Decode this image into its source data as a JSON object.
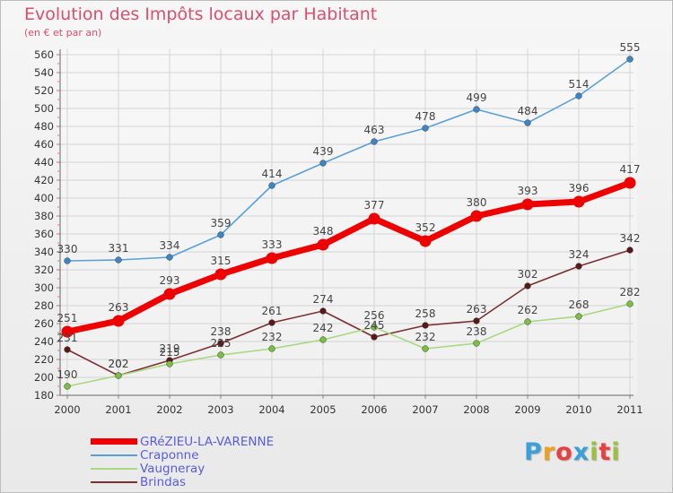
{
  "header": {
    "title": "Evolution des Impôts locaux par Habitant",
    "subtitle": "(en € et par an)"
  },
  "logo": {
    "text": "Proxiti",
    "colors": [
      "#3aa0d8",
      "#f0a020",
      "#e84040",
      "#3aa0d8",
      "#9ac040",
      "#e84040",
      "#9ac040"
    ]
  },
  "chart_data": {
    "type": "line",
    "x": [
      "2000",
      "2001",
      "2002",
      "2003",
      "2004",
      "2005",
      "2006",
      "2007",
      "2008",
      "2009",
      "2010",
      "2011"
    ],
    "ylim": [
      180,
      560
    ],
    "yticks": [
      180,
      200,
      220,
      240,
      260,
      280,
      300,
      320,
      340,
      360,
      380,
      400,
      420,
      440,
      460,
      480,
      500,
      520,
      540,
      560
    ],
    "grid": true,
    "legend_position": "bottom-left",
    "series": [
      {
        "name": "Craponne",
        "color": "#5aa0d8",
        "marker_color": "#3a86c8",
        "values": [
          330,
          331,
          334,
          359,
          414,
          439,
          463,
          478,
          499,
          484,
          514,
          555
        ],
        "labels": [
          "330",
          "331",
          "334",
          "359",
          "414",
          "439",
          "463",
          "478",
          "499",
          "484",
          "514",
          "555"
        ]
      },
      {
        "name": "Brindas",
        "color": "#7a3030",
        "marker_color": "#5a1818",
        "values": [
          231,
          202,
          219,
          238,
          261,
          274,
          245,
          258,
          263,
          302,
          324,
          342
        ],
        "labels": [
          "231",
          "202",
          "219",
          "238",
          "261",
          "274",
          "245",
          "258",
          "263",
          "302",
          "324",
          "342"
        ]
      },
      {
        "name": "Vaugneray",
        "color": "#a8d880",
        "marker_color": "#7ac040",
        "values": [
          190,
          202,
          215,
          225,
          232,
          242,
          256,
          232,
          238,
          262,
          268,
          282
        ],
        "labels": [
          "190",
          "202",
          "215",
          "225",
          "232",
          "242",
          "256",
          "232",
          "238",
          "262",
          "268",
          "282"
        ]
      },
      {
        "name": "GRéZIEU-LA-VARENNE",
        "color": "#ee0000",
        "marker_color": "#ee0000",
        "values": [
          251,
          263,
          293,
          315,
          333,
          348,
          377,
          352,
          380,
          393,
          396,
          417
        ],
        "labels": [
          "251",
          "263",
          "293",
          "315",
          "333",
          "348",
          "377",
          "352",
          "380",
          "393",
          "396",
          "417"
        ]
      }
    ]
  }
}
